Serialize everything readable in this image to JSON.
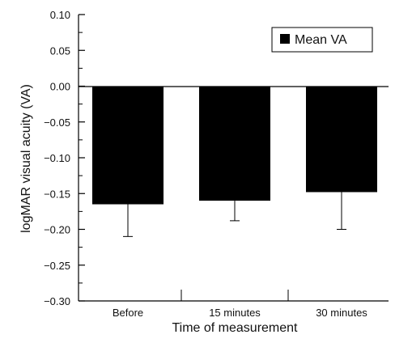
{
  "chart_data": {
    "type": "bar",
    "categories": [
      "Before",
      "15 minutes",
      "30 minutes"
    ],
    "series": [
      {
        "name": "Mean VA",
        "values": [
          -0.165,
          -0.16,
          -0.148
        ],
        "error_low": [
          -0.21,
          -0.188,
          -0.2
        ],
        "error_high": [
          -0.165,
          -0.16,
          -0.148
        ],
        "color": "#000000"
      }
    ],
    "ylim": [
      -0.3,
      0.1
    ],
    "yticks": [
      "0.10",
      "0.05",
      "0.00",
      "−0.05",
      "−0.10",
      "−0.15",
      "−0.20",
      "−0.25",
      "−0.30"
    ],
    "ytick_values": [
      0.1,
      0.05,
      0.0,
      -0.05,
      -0.1,
      -0.15,
      -0.2,
      -0.25,
      -0.3
    ],
    "xlabel": "Time of measurement",
    "ylabel": "logMAR visual acuity (VA)",
    "grid": false,
    "legend_position": "top-right"
  }
}
